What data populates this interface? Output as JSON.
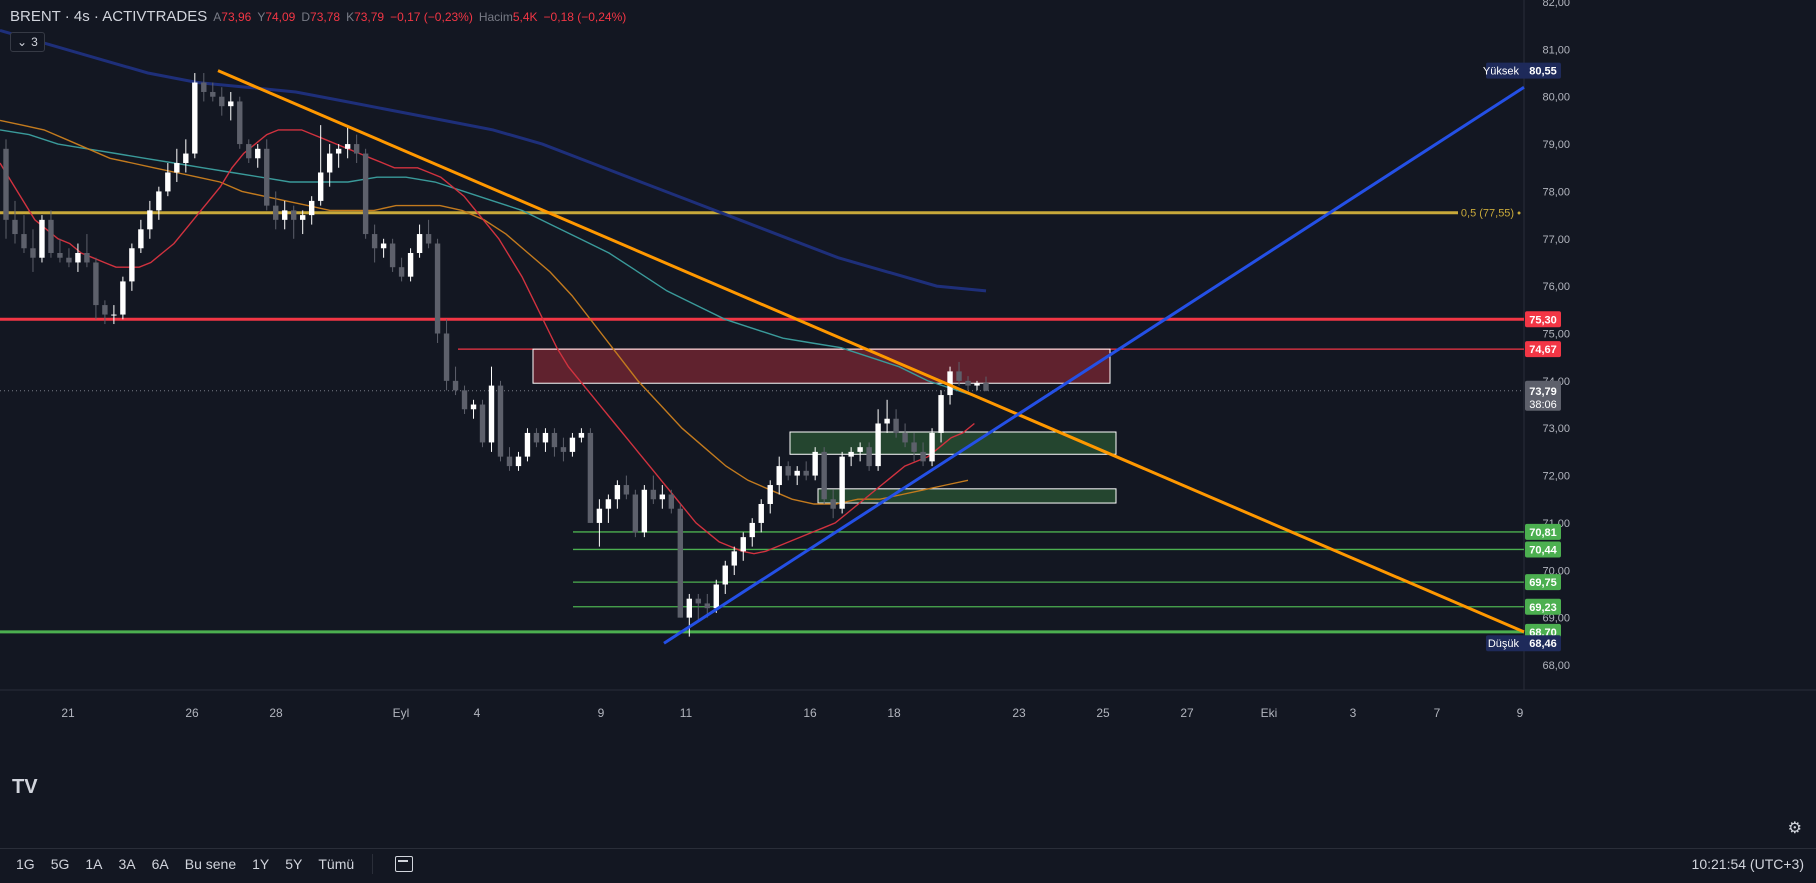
{
  "header": {
    "symbol": "BRENT · 4s · ACTIVTRADES",
    "open_key": "A",
    "open_val": "73,96",
    "high_key": "Y",
    "high_val": "74,09",
    "low_key": "D",
    "low_val": "73,78",
    "close_key": "K",
    "close_val": "73,79",
    "change": "−0,17 (−0,23%)",
    "volume_key": "Hacim",
    "volume_val": "5,4K",
    "volume_change": "−0,18 (−0,24%)",
    "indicators_count": "3"
  },
  "colors": {
    "background": "#131722",
    "up": "#ffffff",
    "down": "#5d606b",
    "ma_red": "#d1323f",
    "ma_orange": "#c27a1e",
    "ma_teal": "#3a9a9a",
    "ma_navy": "#1e2f7a",
    "resistance": "#f23645",
    "support": "#4caf50",
    "fib": "#c8a93a",
    "trend_down": "#ff9800",
    "trend_up": "#2450e6"
  },
  "chart_data": {
    "type": "candlestick",
    "x_ticks": [
      "21",
      "26",
      "28",
      "Eyl",
      "4",
      "9",
      "11",
      "16",
      "18",
      "23",
      "25",
      "27",
      "Eki",
      "3",
      "7",
      "9"
    ],
    "y_ticks": [
      "82,00",
      "81,00",
      "80,00",
      "79,00",
      "78,00",
      "77,00",
      "76,00",
      "75,00",
      "74,00",
      "73,00",
      "72,00",
      "71,00",
      "70,00",
      "69,00",
      "68,00"
    ],
    "ylim": [
      67.9,
      82.0
    ],
    "candles": [
      [
        78.9,
        79.1,
        77.0,
        77.4
      ],
      [
        77.4,
        77.8,
        76.9,
        77.1
      ],
      [
        77.1,
        77.5,
        76.7,
        76.8
      ],
      [
        76.8,
        77.2,
        76.3,
        76.6
      ],
      [
        76.6,
        77.5,
        76.5,
        77.4
      ],
      [
        77.4,
        77.6,
        76.6,
        76.7
      ],
      [
        76.7,
        77.0,
        76.5,
        76.6
      ],
      [
        76.6,
        76.8,
        76.4,
        76.5
      ],
      [
        76.5,
        76.9,
        76.3,
        76.7
      ],
      [
        76.7,
        77.1,
        76.4,
        76.5
      ],
      [
        76.5,
        76.6,
        75.3,
        75.6
      ],
      [
        75.6,
        75.7,
        75.2,
        75.4
      ],
      [
        75.4,
        75.6,
        75.2,
        75.4
      ],
      [
        75.4,
        76.2,
        75.3,
        76.1
      ],
      [
        76.1,
        76.9,
        75.9,
        76.8
      ],
      [
        76.8,
        77.4,
        76.7,
        77.2
      ],
      [
        77.2,
        77.8,
        77.0,
        77.6
      ],
      [
        77.6,
        78.1,
        77.4,
        78.0
      ],
      [
        78.0,
        78.6,
        77.9,
        78.4
      ],
      [
        78.4,
        78.9,
        78.2,
        78.6
      ],
      [
        78.6,
        79.1,
        78.4,
        78.8
      ],
      [
        78.8,
        80.5,
        78.7,
        80.3
      ],
      [
        80.3,
        80.5,
        79.9,
        80.1
      ],
      [
        80.1,
        80.3,
        79.9,
        80.0
      ],
      [
        80.0,
        80.2,
        79.6,
        79.8
      ],
      [
        79.8,
        80.1,
        79.5,
        79.9
      ],
      [
        79.9,
        80.0,
        78.9,
        79.0
      ],
      [
        79.0,
        79.1,
        78.6,
        78.7
      ],
      [
        78.7,
        79.0,
        78.5,
        78.9
      ],
      [
        78.9,
        79.1,
        77.6,
        77.7
      ],
      [
        77.7,
        78.0,
        77.2,
        77.4
      ],
      [
        77.4,
        77.8,
        77.2,
        77.6
      ],
      [
        77.6,
        77.7,
        77.0,
        77.4
      ],
      [
        77.4,
        77.6,
        77.1,
        77.5
      ],
      [
        77.5,
        77.9,
        77.3,
        77.8
      ],
      [
        77.8,
        79.4,
        77.7,
        78.4
      ],
      [
        78.4,
        79.0,
        78.1,
        78.8
      ],
      [
        78.8,
        79.0,
        78.5,
        78.9
      ],
      [
        78.9,
        79.4,
        78.7,
        79.0
      ],
      [
        79.0,
        79.2,
        78.6,
        78.8
      ],
      [
        78.8,
        78.9,
        77.0,
        77.1
      ],
      [
        77.1,
        77.3,
        76.5,
        76.8
      ],
      [
        76.8,
        77.0,
        76.6,
        76.9
      ],
      [
        76.9,
        77.0,
        76.3,
        76.4
      ],
      [
        76.4,
        76.6,
        76.1,
        76.2
      ],
      [
        76.2,
        76.8,
        76.1,
        76.7
      ],
      [
        76.7,
        77.3,
        76.6,
        77.1
      ],
      [
        77.1,
        77.4,
        76.8,
        76.9
      ],
      [
        76.9,
        77.0,
        74.8,
        75.0
      ],
      [
        75.0,
        75.3,
        73.8,
        74.0
      ],
      [
        74.0,
        74.3,
        73.7,
        73.8
      ],
      [
        73.8,
        73.9,
        73.3,
        73.4
      ],
      [
        73.4,
        73.6,
        73.2,
        73.5
      ],
      [
        73.5,
        73.6,
        72.6,
        72.7
      ],
      [
        72.7,
        74.3,
        72.5,
        73.9
      ],
      [
        73.9,
        74.0,
        72.3,
        72.4
      ],
      [
        72.4,
        72.6,
        72.1,
        72.2
      ],
      [
        72.2,
        72.5,
        72.1,
        72.4
      ],
      [
        72.4,
        73.0,
        72.3,
        72.9
      ],
      [
        72.9,
        73.0,
        72.6,
        72.7
      ],
      [
        72.7,
        73.0,
        72.5,
        72.9
      ],
      [
        72.9,
        73.0,
        72.4,
        72.6
      ],
      [
        72.6,
        72.8,
        72.3,
        72.5
      ],
      [
        72.5,
        72.9,
        72.4,
        72.8
      ],
      [
        72.8,
        73.0,
        72.7,
        72.9
      ],
      [
        72.9,
        73.0,
        71.0,
        71.0
      ],
      [
        71.0,
        71.5,
        70.5,
        71.3
      ],
      [
        71.3,
        71.6,
        71.0,
        71.5
      ],
      [
        71.5,
        71.9,
        71.3,
        71.8
      ],
      [
        71.8,
        72.0,
        71.5,
        71.6
      ],
      [
        71.6,
        71.7,
        70.7,
        70.8
      ],
      [
        70.8,
        71.8,
        70.7,
        71.7
      ],
      [
        71.7,
        72.0,
        71.4,
        71.5
      ],
      [
        71.5,
        71.8,
        71.3,
        71.6
      ],
      [
        71.6,
        71.7,
        71.2,
        71.3
      ],
      [
        71.3,
        71.4,
        69.0,
        69.0
      ],
      [
        69.0,
        69.5,
        68.6,
        69.4
      ],
      [
        69.4,
        69.5,
        68.9,
        69.3
      ],
      [
        69.3,
        69.5,
        69.0,
        69.2
      ],
      [
        69.2,
        69.8,
        69.1,
        69.7
      ],
      [
        69.7,
        70.2,
        69.5,
        70.1
      ],
      [
        70.1,
        70.5,
        69.9,
        70.4
      ],
      [
        70.4,
        70.8,
        70.2,
        70.7
      ],
      [
        70.7,
        71.1,
        70.5,
        71.0
      ],
      [
        71.0,
        71.5,
        70.8,
        71.4
      ],
      [
        71.4,
        71.9,
        71.2,
        71.8
      ],
      [
        71.8,
        72.4,
        71.6,
        72.2
      ],
      [
        72.2,
        72.3,
        71.9,
        72.0
      ],
      [
        72.0,
        72.2,
        71.8,
        72.1
      ],
      [
        72.1,
        72.3,
        71.9,
        72.0
      ],
      [
        72.0,
        72.6,
        71.9,
        72.5
      ],
      [
        72.5,
        72.6,
        71.4,
        71.5
      ],
      [
        71.5,
        71.7,
        71.1,
        71.3
      ],
      [
        71.3,
        72.5,
        71.2,
        72.4
      ],
      [
        72.4,
        72.6,
        72.2,
        72.5
      ],
      [
        72.5,
        72.7,
        72.3,
        72.6
      ],
      [
        72.6,
        72.7,
        72.1,
        72.2
      ],
      [
        72.2,
        73.4,
        72.1,
        73.1
      ],
      [
        73.1,
        73.6,
        72.9,
        73.2
      ],
      [
        73.2,
        73.4,
        72.8,
        72.9
      ],
      [
        72.9,
        73.1,
        72.6,
        72.7
      ],
      [
        72.7,
        72.9,
        72.3,
        72.5
      ],
      [
        72.5,
        72.7,
        72.2,
        72.3
      ],
      [
        72.3,
        73.0,
        72.2,
        72.9
      ],
      [
        72.9,
        73.8,
        72.7,
        73.7
      ],
      [
        73.7,
        74.3,
        73.5,
        74.2
      ],
      [
        74.2,
        74.4,
        73.9,
        74.0
      ],
      [
        74.0,
        74.1,
        73.8,
        73.9
      ],
      [
        73.9,
        74.0,
        73.8,
        73.95
      ],
      [
        73.96,
        74.09,
        73.78,
        73.79
      ]
    ],
    "ma_red": [
      78.6,
      78.2,
      77.8,
      77.4,
      77.2,
      77.0,
      76.9,
      76.7,
      76.6,
      76.5,
      76.4,
      76.4,
      76.4,
      76.5,
      76.7,
      76.9,
      77.2,
      77.5,
      77.8,
      78.1,
      78.5,
      78.8,
      79.0,
      79.2,
      79.3,
      79.3,
      79.3,
      79.2,
      79.1,
      79.0,
      78.9,
      78.8,
      78.7,
      78.6,
      78.5,
      78.5,
      78.5,
      78.4,
      78.3,
      78.1,
      77.9,
      77.6,
      77.3,
      77.0,
      76.6,
      76.2,
      75.7,
      75.2,
      74.7,
      74.3,
      74.0,
      73.7,
      73.4,
      73.1,
      72.8,
      72.5,
      72.2,
      71.9,
      71.6,
      71.3,
      71.0,
      70.8,
      70.6,
      70.5,
      70.4,
      70.35,
      70.4,
      70.5,
      70.6,
      70.7,
      70.8,
      70.9,
      71.0,
      71.2,
      71.4,
      71.6,
      71.8,
      72.0,
      72.2,
      72.3,
      72.4,
      72.6,
      72.8,
      72.9,
      73.1
    ],
    "ma_red_start": 0,
    "ma_orange": [
      79.5,
      79.4,
      79.3,
      79.1,
      78.9,
      78.7,
      78.6,
      78.5,
      78.4,
      78.3,
      78.2,
      78.0,
      77.9,
      77.8,
      77.7,
      77.6,
      77.6,
      77.6,
      77.7,
      77.7,
      77.7,
      77.6,
      77.4,
      77.1,
      76.7,
      76.3,
      75.8,
      75.2,
      74.6,
      74.0,
      73.5,
      73.0,
      72.6,
      72.2,
      71.9,
      71.7,
      71.5,
      71.4,
      71.4,
      71.5,
      71.5,
      71.6,
      71.7,
      71.8,
      71.9
    ],
    "ma_teal": [
      79.3,
      79.2,
      79.0,
      78.9,
      78.8,
      78.7,
      78.6,
      78.5,
      78.4,
      78.3,
      78.2,
      78.2,
      78.2,
      78.3,
      78.3,
      78.2,
      78.0,
      77.8,
      77.6,
      77.3,
      77.0,
      76.7,
      76.3,
      75.9,
      75.6,
      75.3,
      75.1,
      74.9,
      74.8,
      74.7,
      74.5,
      74.3,
      74.0,
      73.8,
      73.6
    ],
    "ma_navy": [
      81.4,
      81.1,
      80.8,
      80.5,
      80.3,
      80.2,
      80.1,
      79.9,
      79.7,
      79.5,
      79.3,
      79.0,
      78.6,
      78.2,
      77.8,
      77.4,
      77.0,
      76.6,
      76.3,
      76.0,
      75.9
    ],
    "levels": {
      "resistance_red": "75,30",
      "zone_top": "74,67",
      "high": "80,55",
      "high_label": "Yüksek",
      "low": "68,46",
      "low_label": "Düşük",
      "fib": "0,5 (77,55)",
      "green_levels": [
        "70,81",
        "70,44",
        "69,75",
        "69,23",
        "68,70"
      ],
      "last_price": "73,79",
      "countdown": "38:06"
    }
  },
  "bottom_bar": {
    "ranges": [
      "1G",
      "5G",
      "1A",
      "3A",
      "6A",
      "Bu sene",
      "1Y",
      "5Y",
      "Tümü"
    ],
    "time": "10:21:54 (UTC+3)"
  },
  "logo": "TV"
}
